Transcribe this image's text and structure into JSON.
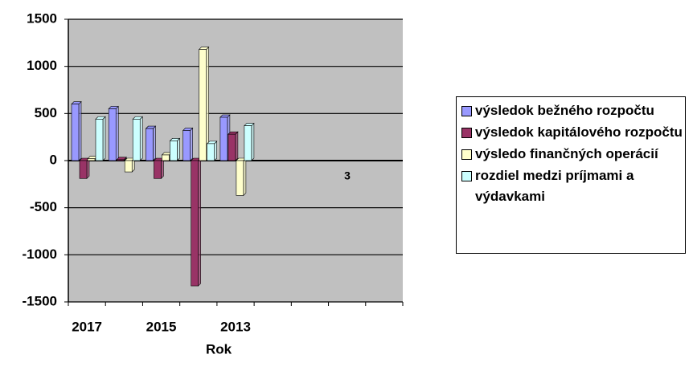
{
  "chart_data": {
    "type": "bar",
    "x_label": "Rok",
    "categories": [
      "2017",
      null,
      "2015",
      null,
      "2013",
      null,
      null,
      null,
      null
    ],
    "series": [
      {
        "name": "výsledok bežného rozpočtu",
        "color": "#9999ff",
        "values": [
          600,
          550,
          340,
          320,
          460,
          null,
          null,
          null,
          null
        ]
      },
      {
        "name": "výsledok kapitálového rozpočtu",
        "color": "#993366",
        "values": [
          -190,
          10,
          -190,
          -1330,
          280,
          null,
          null,
          null,
          null
        ]
      },
      {
        "name": "výsledo finančných operácií",
        "color": "#ffffcc",
        "values": [
          20,
          -120,
          60,
          1180,
          -370,
          null,
          null,
          null,
          null
        ]
      },
      {
        "name": "rozdiel medzi príjmami a výdavkami",
        "color": "#ccffff",
        "values": [
          440,
          440,
          210,
          180,
          370,
          null,
          null,
          null,
          null
        ]
      }
    ],
    "annotations": [
      "3"
    ],
    "ylim": [
      -1500,
      1500
    ],
    "yticks": [
      -1500,
      -1000,
      -500,
      0,
      500,
      1000,
      1500
    ],
    "grid": true,
    "legend": "right",
    "plot_background": "#c0c0c0"
  }
}
